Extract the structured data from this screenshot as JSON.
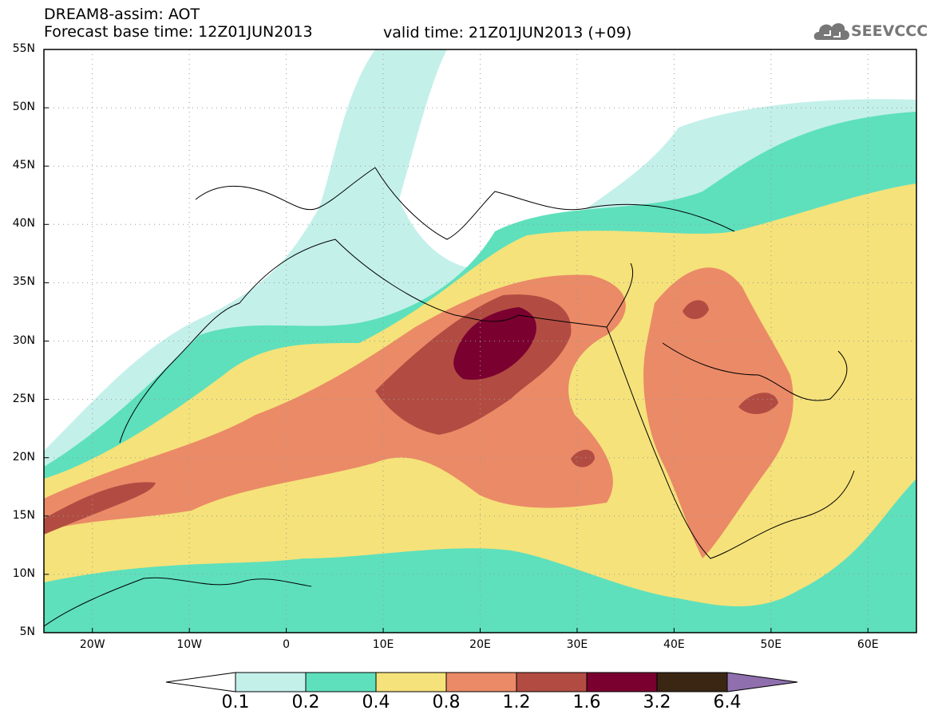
{
  "header": {
    "title": "DREAM8-assim: AOT",
    "base_time": "Forecast base time: 12Z01JUN2013",
    "valid_time": "valid time: 21Z01JUN2013 (+09)"
  },
  "logo": {
    "text": "SEEVCCC",
    "icon": "cloud-icon"
  },
  "map": {
    "lon_range": [
      -25,
      65
    ],
    "lat_range": [
      5,
      55
    ],
    "lat_ticks": [
      {
        "value": 55,
        "label": "55N"
      },
      {
        "value": 50,
        "label": "50N"
      },
      {
        "value": 45,
        "label": "45N"
      },
      {
        "value": 40,
        "label": "40N"
      },
      {
        "value": 35,
        "label": "35N"
      },
      {
        "value": 30,
        "label": "30N"
      },
      {
        "value": 25,
        "label": "25N"
      },
      {
        "value": 20,
        "label": "20N"
      },
      {
        "value": 15,
        "label": "15N"
      },
      {
        "value": 10,
        "label": "10N"
      },
      {
        "value": 5,
        "label": "5N"
      }
    ],
    "lon_ticks": [
      {
        "value": -20,
        "label": "20W"
      },
      {
        "value": -10,
        "label": "10W"
      },
      {
        "value": 0,
        "label": "0"
      },
      {
        "value": 10,
        "label": "10E"
      },
      {
        "value": 20,
        "label": "20E"
      },
      {
        "value": 30,
        "label": "30E"
      },
      {
        "value": 40,
        "label": "40E"
      },
      {
        "value": 50,
        "label": "50E"
      },
      {
        "value": 60,
        "label": "60E"
      }
    ],
    "grid": true
  },
  "colorbar": {
    "levels": [
      "0.1",
      "0.2",
      "0.4",
      "0.8",
      "1.2",
      "1.6",
      "3.2",
      "6.4"
    ],
    "colors": [
      "#ffffff",
      "#c4f0ea",
      "#5ee0bc",
      "#f5e27a",
      "#eb8a67",
      "#b24c42",
      "#7a0030",
      "#3b2614",
      "#8f6fad"
    ]
  }
}
